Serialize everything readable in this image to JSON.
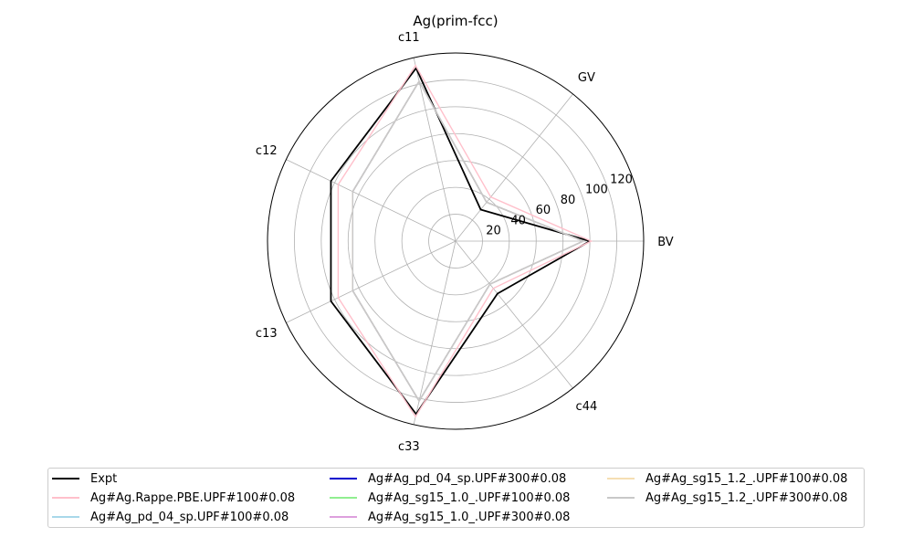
{
  "chart_data": {
    "type": "radar",
    "title": "Ag(prim-fcc)",
    "axes": [
      "BV",
      "GV",
      "c11",
      "c12",
      "c13",
      "c33",
      "c44"
    ],
    "radial_ticks": [
      "20",
      "40",
      "60",
      "80",
      "100",
      "120"
    ],
    "radial_range": [
      0,
      140
    ],
    "grid": true,
    "legend_placement": "bottom",
    "series": [
      {
        "name": "Expt",
        "color": "#000000",
        "values": [
          100,
          30,
          132,
          103,
          103,
          132,
          50
        ]
      },
      {
        "name": "Ag#Ag.Rappe.PBE.UPF#100#0.08",
        "color": "#ffc0cb",
        "values": [
          101,
          42,
          134,
          97,
          97,
          134,
          45
        ]
      },
      {
        "name": "Ag#Ag_pd_04_sp.UPF#100#0.08",
        "color": "#a8d8ea",
        "values": [
          95,
          37,
          122,
          85,
          85,
          122,
          41
        ]
      },
      {
        "name": "Ag#Ag_pd_04_sp.UPF#300#0.08",
        "color": "#0000cd",
        "values": [
          95,
          37,
          122,
          85,
          85,
          122,
          41
        ]
      },
      {
        "name": "Ag#Ag_sg15_1.0_.UPF#100#0.08",
        "color": "#90ee90",
        "values": [
          95,
          37,
          122,
          85,
          85,
          122,
          41
        ]
      },
      {
        "name": "Ag#Ag_sg15_1.0_.UPF#300#0.08",
        "color": "#dda0dd",
        "values": [
          95,
          37,
          122,
          85,
          85,
          122,
          41
        ]
      },
      {
        "name": "Ag#Ag_sg15_1.2_.UPF#100#0.08",
        "color": "#f5deb3",
        "values": [
          95,
          37,
          122,
          85,
          85,
          122,
          41
        ]
      },
      {
        "name": "Ag#Ag_sg15_1.2_.UPF#300#0.08",
        "color": "#c8c8c8",
        "values": [
          95,
          37,
          122,
          85,
          85,
          122,
          41
        ]
      }
    ]
  }
}
